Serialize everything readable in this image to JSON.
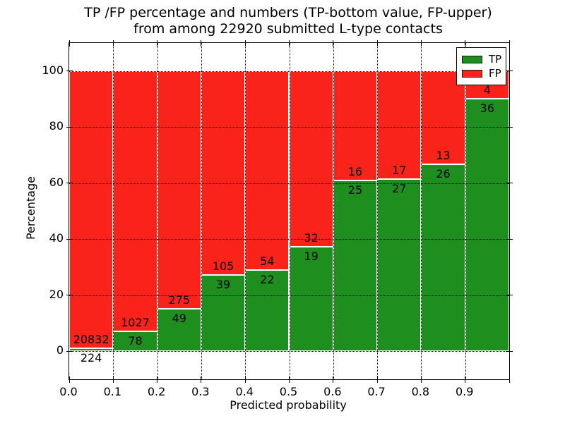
{
  "figure": {
    "title_line1": "TP /FP percentage and numbers (TP-bottom value, FP-upper)",
    "title_line2": "from among 22920 submitted L-type contacts"
  },
  "axes": {
    "xlabel": "Predicted probability",
    "ylabel": "Percentage",
    "x_tick_labels": [
      "0.0",
      "0.1",
      "0.2",
      "0.3",
      "0.4",
      "0.5",
      "0.6",
      "0.7",
      "0.8",
      "0.9"
    ],
    "y_tick_labels": [
      "0",
      "20",
      "40",
      "60",
      "80",
      "100"
    ]
  },
  "legend": {
    "entries": [
      {
        "label": "TP",
        "color": "#1e8e1e"
      },
      {
        "label": "FP",
        "color": "#f92319"
      }
    ]
  },
  "colors": {
    "tp_green": "#1e8e1e",
    "fp_red": "#f92319",
    "bar_edge": "#ffffff",
    "grid": "#000000"
  },
  "chart_data": {
    "type": "bar",
    "stacked": true,
    "title": "TP /FP percentage and numbers (TP-bottom value, FP-upper) from among 22920 submitted L-type contacts",
    "xlabel": "Predicted probability",
    "ylabel": "Percentage",
    "total_submitted": 22920,
    "contact_type": "L-type",
    "xlim": [
      0.0,
      1.0
    ],
    "ylim": [
      -10,
      110
    ],
    "x_ticks": [
      0.0,
      0.1,
      0.2,
      0.3,
      0.4,
      0.5,
      0.6,
      0.7,
      0.8,
      0.9
    ],
    "y_ticks": [
      0,
      20,
      40,
      60,
      80,
      100
    ],
    "grid": "dotted black, on all ticks",
    "legend_position": "upper right",
    "bin_ranges": [
      "0.0-0.1",
      "0.1-0.2",
      "0.2-0.3",
      "0.3-0.4",
      "0.4-0.5",
      "0.5-0.6",
      "0.6-0.7",
      "0.7-0.8",
      "0.8-0.9",
      "0.9-1.0"
    ],
    "series": [
      {
        "name": "TP",
        "color": "#1e8e1e",
        "position": "bottom",
        "counts": [
          224,
          78,
          49,
          39,
          22,
          19,
          25,
          27,
          26,
          36
        ],
        "percentages": [
          1.06,
          7.06,
          15.12,
          27.08,
          28.95,
          37.25,
          60.98,
          61.36,
          66.67,
          90.0
        ]
      },
      {
        "name": "FP",
        "color": "#f92319",
        "position": "top",
        "counts": [
          20832,
          1027,
          275,
          105,
          54,
          32,
          16,
          17,
          13,
          4
        ],
        "percentages": [
          98.94,
          92.94,
          84.88,
          72.92,
          71.05,
          62.75,
          39.02,
          38.64,
          33.33,
          10.0
        ]
      }
    ]
  }
}
